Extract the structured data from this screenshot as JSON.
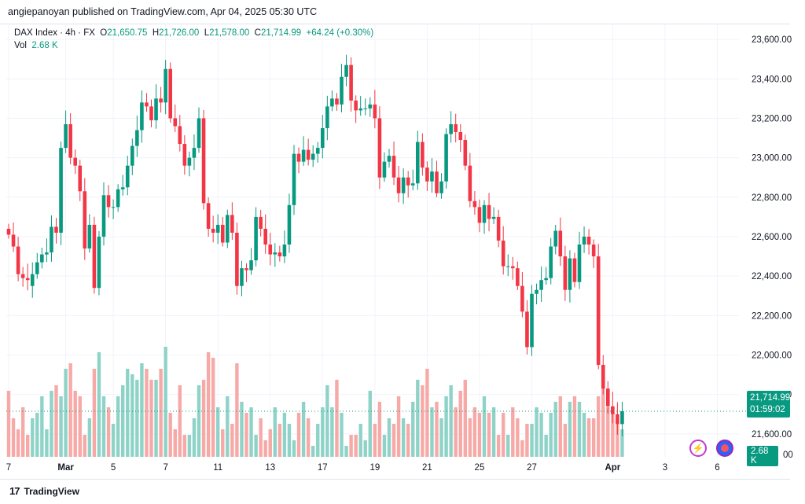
{
  "attribution": "angiepanoyan published on TradingView.com, Apr 04, 2025 05:30 UTC",
  "legend": {
    "symbol": "DAX Index · 4h · FX",
    "o_label": "O",
    "o_value": "21,650.75",
    "h_label": "H",
    "h_value": "21,726.00",
    "l_label": "L",
    "l_value": "21,578.00",
    "c_label": "C",
    "c_value": "21,714.99",
    "change": "+64.24 (+0.30%)",
    "vol_label": "Vol",
    "vol_value": "2.68 K"
  },
  "price_badge": {
    "price": "21,714.99",
    "countdown": "01:59:02"
  },
  "volume_badge": "2.68 K",
  "footer": {
    "logo": "17",
    "brand": "TradingView"
  },
  "colors": {
    "up": "#089981",
    "down": "#f23645",
    "up_vol": "#8fd3c8",
    "down_vol": "#f7a9a7",
    "grid": "#f0f3fa"
  },
  "icons": {
    "bolt": "lightning-icon",
    "globe": "globe-flag-icon"
  },
  "chart_data": {
    "type": "candlestick",
    "title": "DAX Index · 4h · FX",
    "xlabel": "",
    "ylabel": "",
    "ylim": [
      21480,
      23680
    ],
    "y_ticks": [
      23600,
      23400,
      23200,
      23000,
      22800,
      22600,
      22400,
      22200,
      22000,
      21800,
      21600
    ],
    "y_tick_labels": [
      "23,600.00",
      "23,400.00",
      "23,200.00",
      "23,000.00",
      "22,800.00",
      "22,600.00",
      "22,400.00",
      "22,200.00",
      "22,000.00",
      "21,800.00",
      "21,600.00"
    ],
    "x_tick_labels": [
      {
        "label": "7",
        "index": 0
      },
      {
        "label": "Mar",
        "index": 12
      },
      {
        "label": "5",
        "index": 22
      },
      {
        "label": "7",
        "index": 33
      },
      {
        "label": "11",
        "index": 44
      },
      {
        "label": "13",
        "index": 55
      },
      {
        "label": "17",
        "index": 66
      },
      {
        "label": "19",
        "index": 77
      },
      {
        "label": "21",
        "index": 88
      },
      {
        "label": "25",
        "index": 99
      },
      {
        "label": "27",
        "index": 110
      },
      {
        "label": "Apr",
        "index": 127
      },
      {
        "label": "3",
        "index": 138
      },
      {
        "label": "6",
        "index": 149
      }
    ],
    "volume_label": "00",
    "series": [
      {
        "name": "open",
        "values": [
          22640,
          22610,
          22550,
          22410,
          22390,
          22350,
          22410,
          22470,
          22510,
          22520,
          22650,
          22620,
          23050,
          23170,
          23000,
          22960,
          22830,
          22540,
          22660,
          22340,
          22600,
          22810,
          22750,
          22750,
          22840,
          22850,
          22960,
          23060,
          23140,
          23280,
          23260,
          23190,
          23300,
          23280,
          23450,
          23200,
          23160,
          23070,
          22960,
          23000,
          23050,
          23200,
          22770,
          22640,
          22620,
          22660,
          22570,
          22710,
          22620,
          22350,
          22440,
          22430,
          22480,
          22700,
          22640,
          22560,
          22510,
          22520,
          22500,
          22560,
          22760,
          23020,
          22980,
          23040,
          22990,
          23020,
          23050,
          23150,
          23260,
          23300,
          23270,
          23410,
          23470,
          23290,
          23240,
          23250,
          23250,
          23270,
          23200,
          22900,
          22980,
          23010,
          22900,
          22820,
          22900,
          22860,
          22870,
          23080,
          22950,
          22880,
          22930,
          22820,
          22880,
          23120,
          23170,
          23130,
          23090,
          22960,
          22780,
          22750,
          22670,
          22760,
          22690,
          22700,
          22580,
          22450,
          22450,
          22440,
          22350,
          22220,
          22040,
          22310,
          22330,
          22380,
          22390,
          22550,
          22630,
          22500,
          22330,
          22490,
          22370,
          22560,
          22600,
          22560,
          22500,
          21950,
          21830,
          21740,
          21700,
          21650
        ]
      },
      {
        "name": "close",
        "values": [
          22610,
          22550,
          22410,
          22390,
          22380,
          22410,
          22470,
          22510,
          22520,
          22650,
          22620,
          23050,
          23170,
          23000,
          22960,
          22830,
          22540,
          22660,
          22340,
          22600,
          22810,
          22750,
          22750,
          22840,
          22850,
          22960,
          23060,
          23140,
          23280,
          23260,
          23190,
          23300,
          23280,
          23450,
          23200,
          23160,
          23070,
          22960,
          23000,
          23050,
          23200,
          22770,
          22640,
          22620,
          22660,
          22570,
          22710,
          22620,
          22350,
          22440,
          22430,
          22480,
          22700,
          22640,
          22560,
          22510,
          22520,
          22500,
          22560,
          22760,
          23020,
          22980,
          23040,
          22990,
          23020,
          23050,
          23150,
          23260,
          23300,
          23270,
          23410,
          23470,
          23290,
          23240,
          23250,
          23250,
          23270,
          23200,
          22900,
          22980,
          23010,
          22900,
          22820,
          22900,
          22860,
          22870,
          23080,
          22950,
          22880,
          22930,
          22820,
          22880,
          23120,
          23170,
          23130,
          23090,
          22960,
          22780,
          22750,
          22670,
          22760,
          22690,
          22700,
          22580,
          22450,
          22450,
          22440,
          22350,
          22220,
          22040,
          22310,
          22330,
          22380,
          22390,
          22550,
          22630,
          22500,
          22330,
          22490,
          22370,
          22560,
          22600,
          22560,
          22500,
          21950,
          21830,
          21740,
          21700,
          21650,
          21715
        ]
      }
    ],
    "volume": {
      "values": [
        60,
        35,
        25,
        45,
        20,
        35,
        40,
        55,
        25,
        60,
        65,
        55,
        80,
        85,
        60,
        55,
        20,
        35,
        80,
        95,
        55,
        45,
        30,
        55,
        65,
        80,
        75,
        70,
        85,
        80,
        70,
        70,
        80,
        100,
        40,
        25,
        65,
        20,
        20,
        35,
        65,
        70,
        95,
        90,
        45,
        25,
        55,
        30,
        85,
        50,
        40,
        45,
        20,
        35,
        15,
        25,
        45,
        30,
        40,
        30,
        15,
        40,
        50,
        35,
        10,
        30,
        45,
        65,
        45,
        70,
        40,
        10,
        20,
        20,
        30,
        15,
        60,
        30,
        50,
        20,
        35,
        30,
        55,
        35,
        30,
        50,
        70,
        65,
        80,
        45,
        50,
        35,
        55,
        65,
        45,
        60,
        70,
        35,
        45,
        40,
        55,
        40,
        45,
        20,
        40,
        20,
        45,
        35,
        15,
        30,
        30,
        45,
        40,
        20,
        40,
        50,
        55,
        30,
        50,
        55,
        50,
        40,
        35,
        35,
        55,
        70,
        45,
        40,
        35,
        25
      ],
      "unit": "K (estimated relative)"
    }
  }
}
